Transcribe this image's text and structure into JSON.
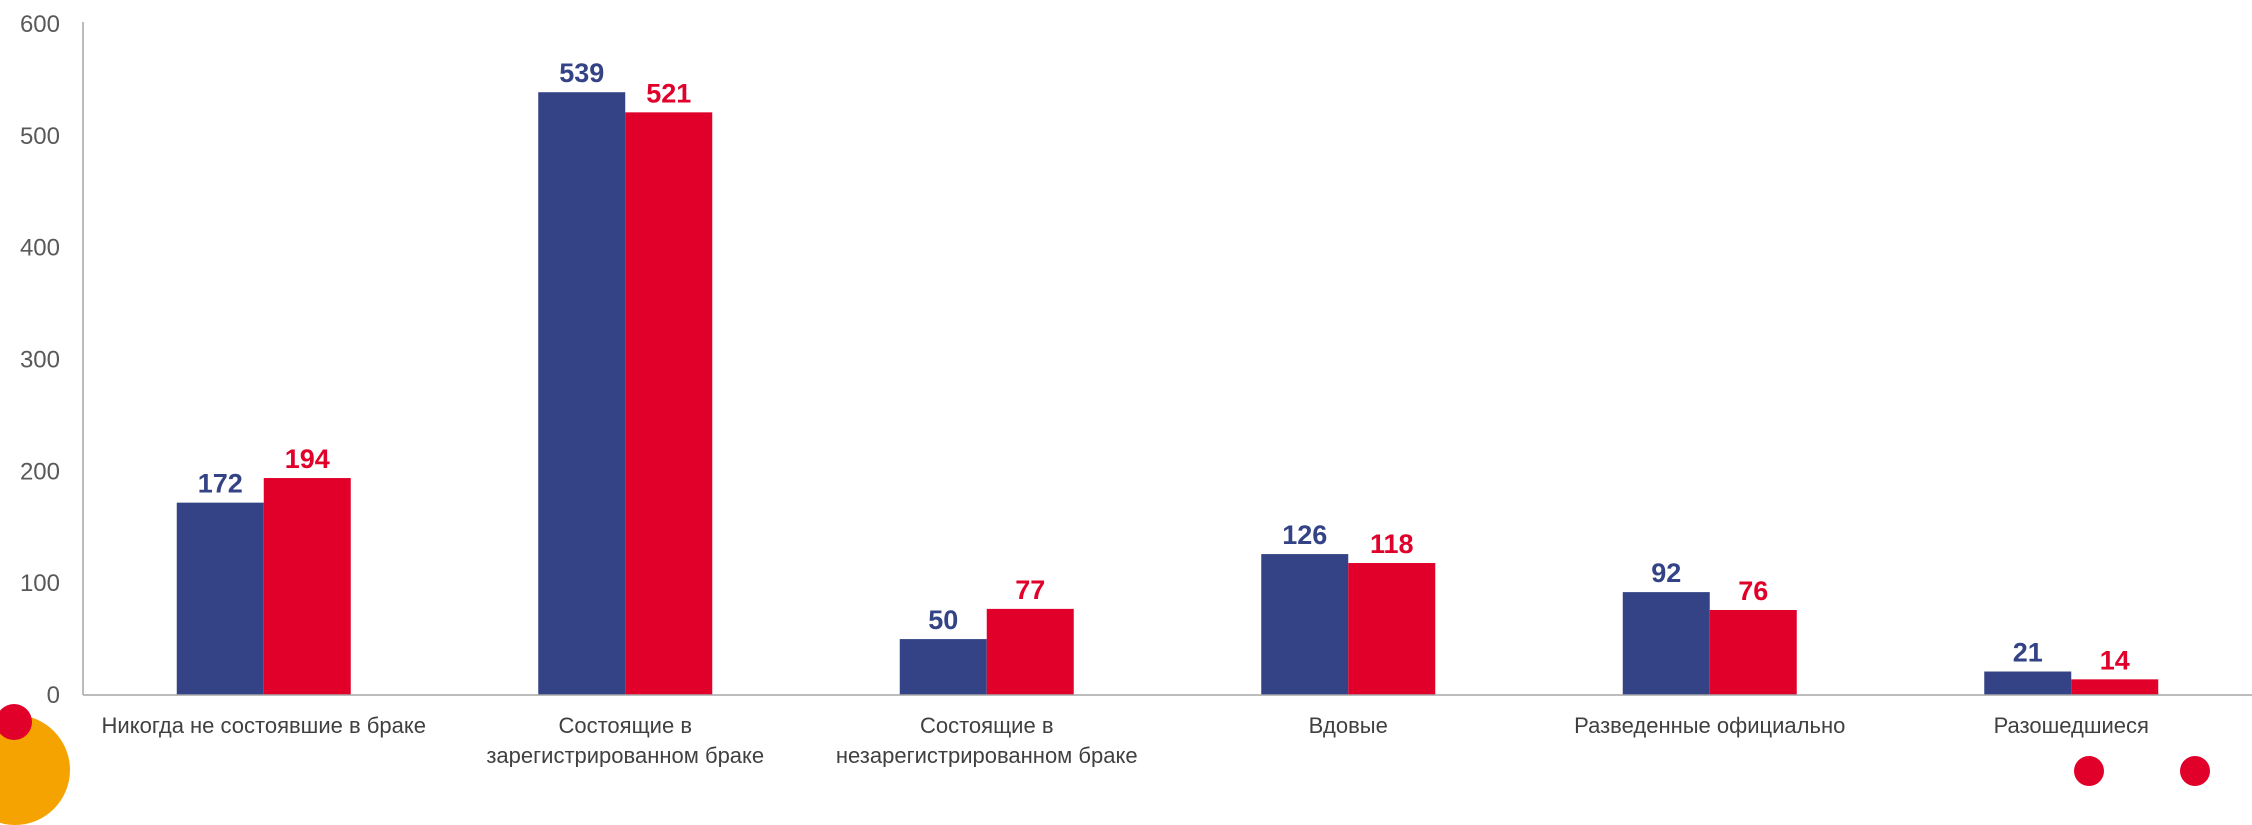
{
  "chart_data": {
    "type": "bar",
    "categories": [
      [
        "Никогда не состоявшие в браке"
      ],
      [
        "Состоящие в",
        "зарегистрированном браке"
      ],
      [
        "Состоящие в",
        "незарегистрированном браке"
      ],
      [
        "Вдовые"
      ],
      [
        "Разведенные официально"
      ],
      [
        "Разошедшиеся"
      ]
    ],
    "series": [
      {
        "values": [
          172,
          539,
          50,
          126,
          92,
          21
        ],
        "color": "#334386"
      },
      {
        "values": [
          194,
          521,
          77,
          118,
          76,
          14
        ],
        "color": "#E0002A"
      }
    ],
    "ylim": [
      0,
      600
    ],
    "yticks": [
      0,
      100,
      200,
      300,
      400,
      500,
      600
    ],
    "data_labels": true,
    "grid": false,
    "legend": "none",
    "axis_color": "#A6A6A6"
  },
  "decorations": {
    "circle_color": "#E0002A",
    "arc_color": "#F5A300"
  }
}
